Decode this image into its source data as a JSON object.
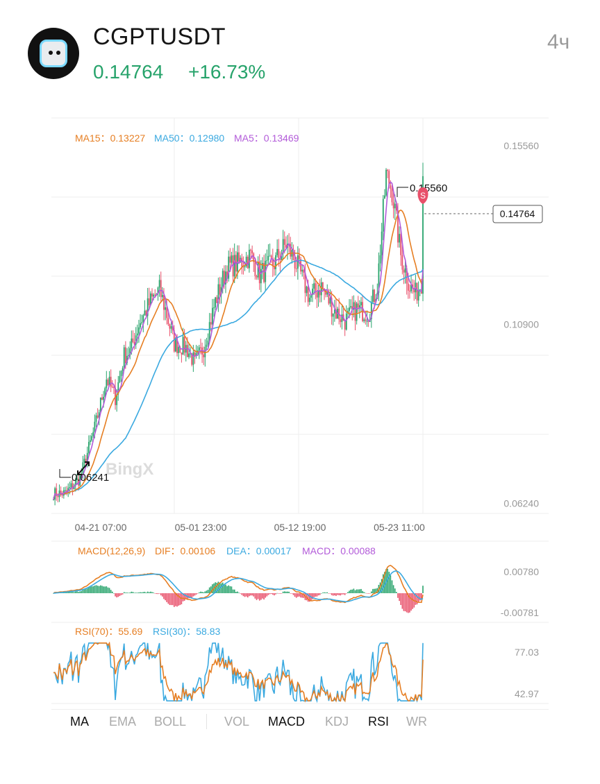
{
  "header": {
    "symbol": "CGPTUSDT",
    "price": "0.14764",
    "change": "+16.73%",
    "interval": "4ч",
    "logo": "cgpt-robot-logo"
  },
  "colors": {
    "up": "#27a36b",
    "down": "#e8506a",
    "ma15": "#e67e22",
    "ma50": "#3aa9e0",
    "ma5": "#b25ad9",
    "grid": "#eeeeee",
    "axis_text": "#999999"
  },
  "legend": {
    "ma15": "MA15：0.13227",
    "ma50": "MA50：0.12980",
    "ma5": "MA5：0.13469",
    "macd_title": "MACD(12,26,9)",
    "dif": "DIF：0.00106",
    "dea": "DEA：0.00017",
    "macd": "MACD：0.00088",
    "rsi70": "RSI(70)：55.69",
    "rsi30": "RSI(30)：58.83"
  },
  "annotations": {
    "high": "0.15560",
    "low": "0.06241",
    "current": "0.14764",
    "marker": "S",
    "watermark": "BingX"
  },
  "tabs": [
    {
      "label": "MA",
      "active": true
    },
    {
      "label": "EMA",
      "active": false
    },
    {
      "label": "BOLL",
      "active": false
    },
    {
      "label": "VOL",
      "active": false
    },
    {
      "label": "MACD",
      "active": true
    },
    {
      "label": "KDJ",
      "active": false
    },
    {
      "label": "RSI",
      "active": true
    },
    {
      "label": "WR",
      "active": false
    }
  ],
  "chart_data": [
    {
      "type": "candlestick",
      "title": "CGPTUSDT 4h",
      "x_ticks": [
        "04-21 07:00",
        "05-01 23:00",
        "05-12 19:00",
        "05-23 11:00"
      ],
      "y_ticks": [
        "0.15560",
        "0.10900",
        "0.06240"
      ],
      "ylim": [
        0.0598,
        0.1628
      ],
      "close_path": [
        [
          0,
          0.065
        ],
        [
          8,
          0.065
        ],
        [
          18,
          0.069
        ],
        [
          28,
          0.082
        ],
        [
          36,
          0.095
        ],
        [
          42,
          0.09
        ],
        [
          48,
          0.101
        ],
        [
          52,
          0.102
        ],
        [
          58,
          0.109
        ],
        [
          66,
          0.115
        ],
        [
          72,
          0.118
        ],
        [
          76,
          0.113
        ],
        [
          82,
          0.104
        ],
        [
          90,
          0.103
        ],
        [
          96,
          0.099
        ],
        [
          102,
          0.103
        ],
        [
          110,
          0.115
        ],
        [
          118,
          0.124
        ],
        [
          126,
          0.125
        ],
        [
          134,
          0.127
        ],
        [
          140,
          0.122
        ],
        [
          150,
          0.125
        ],
        [
          158,
          0.13
        ],
        [
          166,
          0.124
        ],
        [
          174,
          0.116
        ],
        [
          182,
          0.119
        ],
        [
          190,
          0.113
        ],
        [
          198,
          0.11
        ],
        [
          206,
          0.113
        ],
        [
          214,
          0.112
        ],
        [
          220,
          0.119
        ],
        [
          226,
          0.148
        ],
        [
          230,
          0.144
        ],
        [
          236,
          0.127
        ],
        [
          242,
          0.119
        ],
        [
          246,
          0.117
        ],
        [
          250,
          0.12
        ],
        [
          251,
          0.148
        ]
      ],
      "n_candles": 252,
      "series": [
        {
          "name": "MA15",
          "last": 0.13227
        },
        {
          "name": "MA50",
          "last": 0.1298
        },
        {
          "name": "MA5",
          "last": 0.13469
        }
      ],
      "high": 0.1556,
      "low": 0.06241,
      "last": 0.14764
    },
    {
      "type": "bar",
      "title": "MACD(12,26,9)",
      "y_ticks": [
        "0.00780",
        "-0.00781"
      ],
      "ylim": [
        -0.00781,
        0.0078
      ],
      "dif_last": 0.00106,
      "dea_last": 0.00017,
      "macd_last": 0.00088
    },
    {
      "type": "line",
      "title": "RSI",
      "y_ticks": [
        "77.03",
        "42.97"
      ],
      "ylim": [
        36.0,
        85.0
      ],
      "series": [
        {
          "name": "RSI(70)",
          "last": 55.69
        },
        {
          "name": "RSI(30)",
          "last": 58.83
        }
      ]
    }
  ]
}
